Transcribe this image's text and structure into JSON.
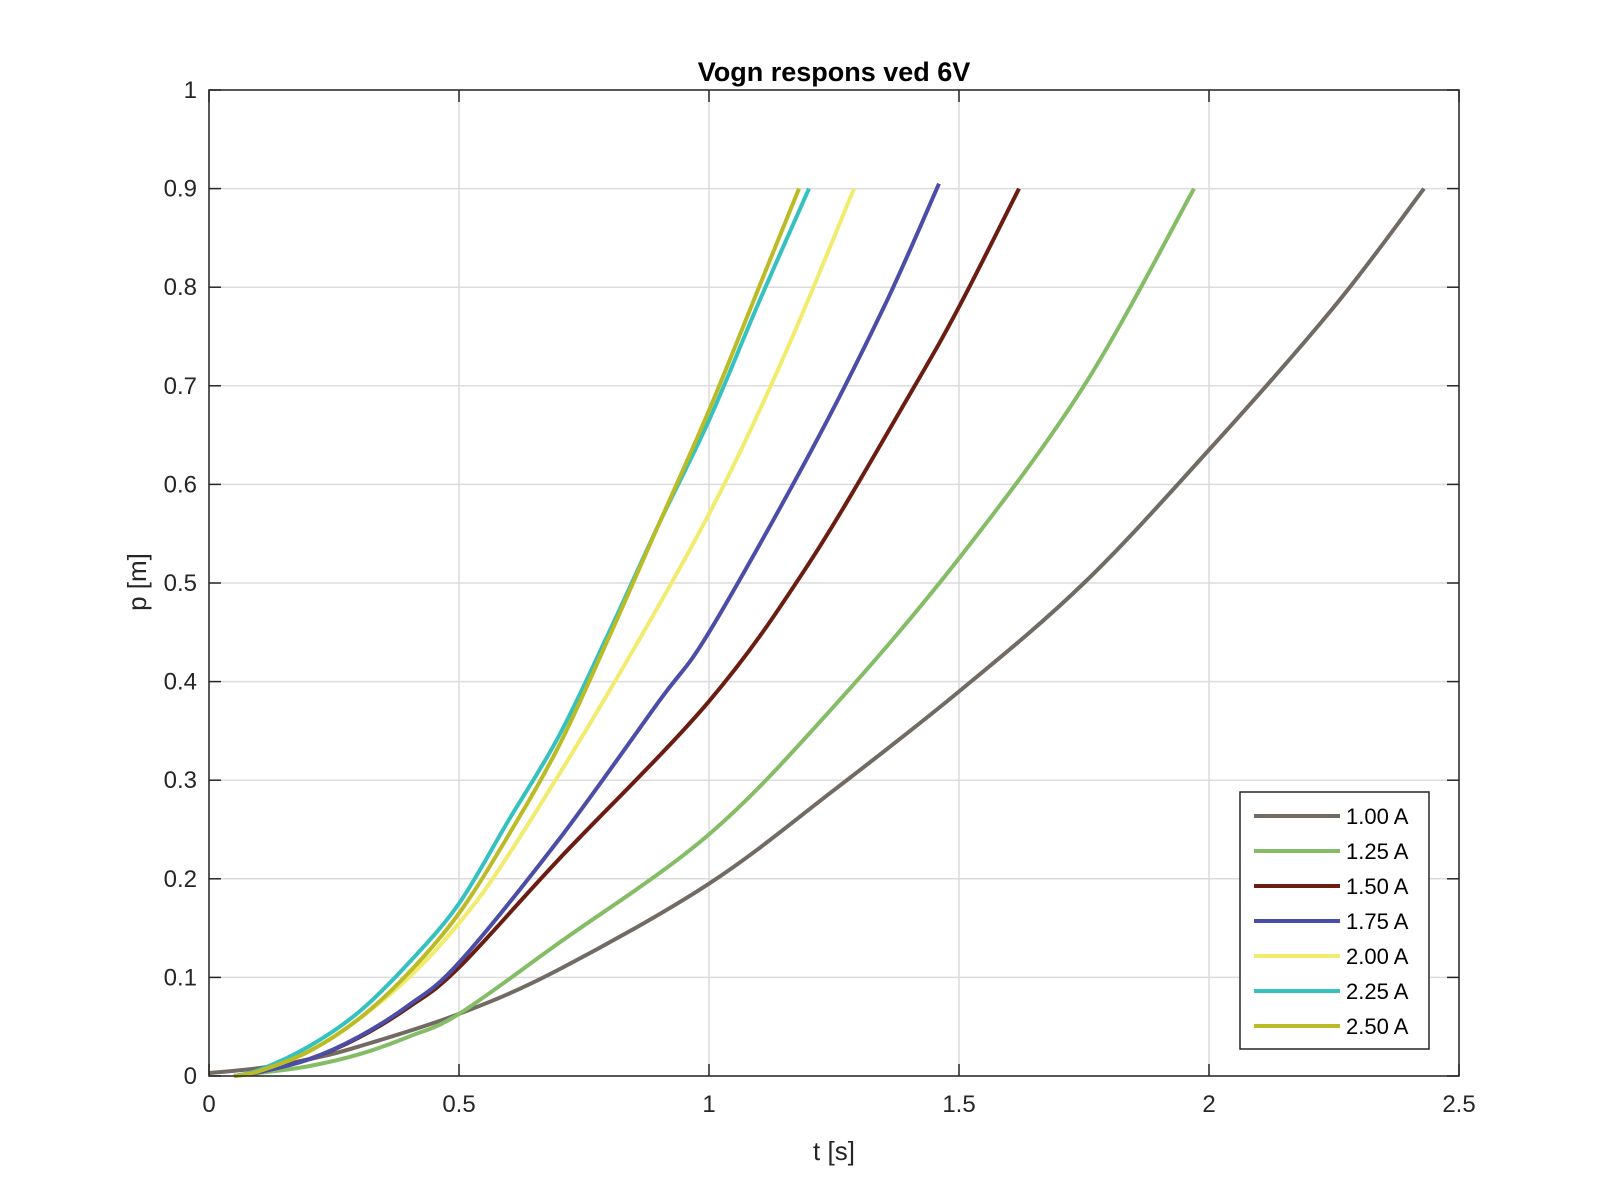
{
  "chart_data": {
    "type": "line",
    "title": "Vogn respons ved 6V",
    "xlabel": "t [s]",
    "ylabel": "p [m]",
    "xlim": [
      0,
      2.5
    ],
    "ylim": [
      0,
      1
    ],
    "xticks": [
      0,
      0.5,
      1,
      1.5,
      2,
      2.5
    ],
    "xtick_labels": [
      "0",
      "0.5",
      "1",
      "1.5",
      "2",
      "2.5"
    ],
    "yticks": [
      0,
      0.1,
      0.2,
      0.3,
      0.4,
      0.5,
      0.6,
      0.7,
      0.8,
      0.9,
      1
    ],
    "ytick_labels": [
      "0",
      "0.1",
      "0.2",
      "0.3",
      "0.4",
      "0.5",
      "0.6",
      "0.7",
      "0.8",
      "0.9",
      "1"
    ],
    "grid": true,
    "legend_position": "bottom-right",
    "series": [
      {
        "name": "1.00 A",
        "color": "#716b64",
        "x": [
          0,
          0.1,
          0.2,
          0.3,
          0.5,
          0.7,
          1.0,
          1.25,
          1.5,
          1.75,
          2.0,
          2.25,
          2.43
        ],
        "y": [
          0.003,
          0.008,
          0.017,
          0.03,
          0.063,
          0.108,
          0.195,
          0.29,
          0.39,
          0.5,
          0.635,
          0.78,
          0.9
        ]
      },
      {
        "name": "1.25 A",
        "color": "#85bd66",
        "x": [
          0.05,
          0.1,
          0.2,
          0.3,
          0.4,
          0.5,
          0.7,
          1.0,
          1.25,
          1.5,
          1.75,
          1.97
        ],
        "y": [
          0.0,
          0.003,
          0.01,
          0.022,
          0.04,
          0.063,
          0.135,
          0.245,
          0.375,
          0.525,
          0.7,
          0.9
        ]
      },
      {
        "name": "1.50 A",
        "color": "#6a1d10",
        "x": [
          0.05,
          0.1,
          0.2,
          0.3,
          0.4,
          0.5,
          0.7,
          1.0,
          1.2,
          1.4,
          1.5,
          1.62
        ],
        "y": [
          0.0,
          0.004,
          0.017,
          0.039,
          0.07,
          0.11,
          0.22,
          0.38,
          0.52,
          0.69,
          0.78,
          0.9
        ]
      },
      {
        "name": "1.75 A",
        "color": "#4a4ea6",
        "x": [
          0.05,
          0.1,
          0.2,
          0.3,
          0.4,
          0.5,
          0.7,
          0.9,
          1.0,
          1.2,
          1.35,
          1.46
        ],
        "y": [
          0.0,
          0.004,
          0.017,
          0.04,
          0.072,
          0.115,
          0.24,
          0.38,
          0.45,
          0.63,
          0.78,
          0.905
        ]
      },
      {
        "name": "2.00 A",
        "color": "#f2ec6e",
        "x": [
          0.05,
          0.1,
          0.2,
          0.3,
          0.4,
          0.5,
          0.6,
          0.8,
          1.0,
          1.15,
          1.29
        ],
        "y": [
          0.0,
          0.005,
          0.025,
          0.058,
          0.1,
          0.155,
          0.225,
          0.39,
          0.57,
          0.73,
          0.9
        ]
      },
      {
        "name": "2.25 A",
        "color": "#35c1bf",
        "x": [
          0.05,
          0.1,
          0.2,
          0.3,
          0.4,
          0.5,
          0.6,
          0.7,
          0.8,
          0.9,
          1.0,
          1.1,
          1.2
        ],
        "y": [
          0.0,
          0.006,
          0.03,
          0.065,
          0.115,
          0.175,
          0.26,
          0.345,
          0.45,
          0.56,
          0.665,
          0.785,
          0.9
        ]
      },
      {
        "name": "2.50 A",
        "color": "#bbbb26",
        "x": [
          0.05,
          0.1,
          0.2,
          0.3,
          0.4,
          0.5,
          0.6,
          0.7,
          0.8,
          0.9,
          1.0,
          1.1,
          1.18
        ],
        "y": [
          0.0,
          0.005,
          0.025,
          0.058,
          0.105,
          0.165,
          0.245,
          0.335,
          0.445,
          0.56,
          0.675,
          0.8,
          0.9
        ]
      }
    ]
  }
}
